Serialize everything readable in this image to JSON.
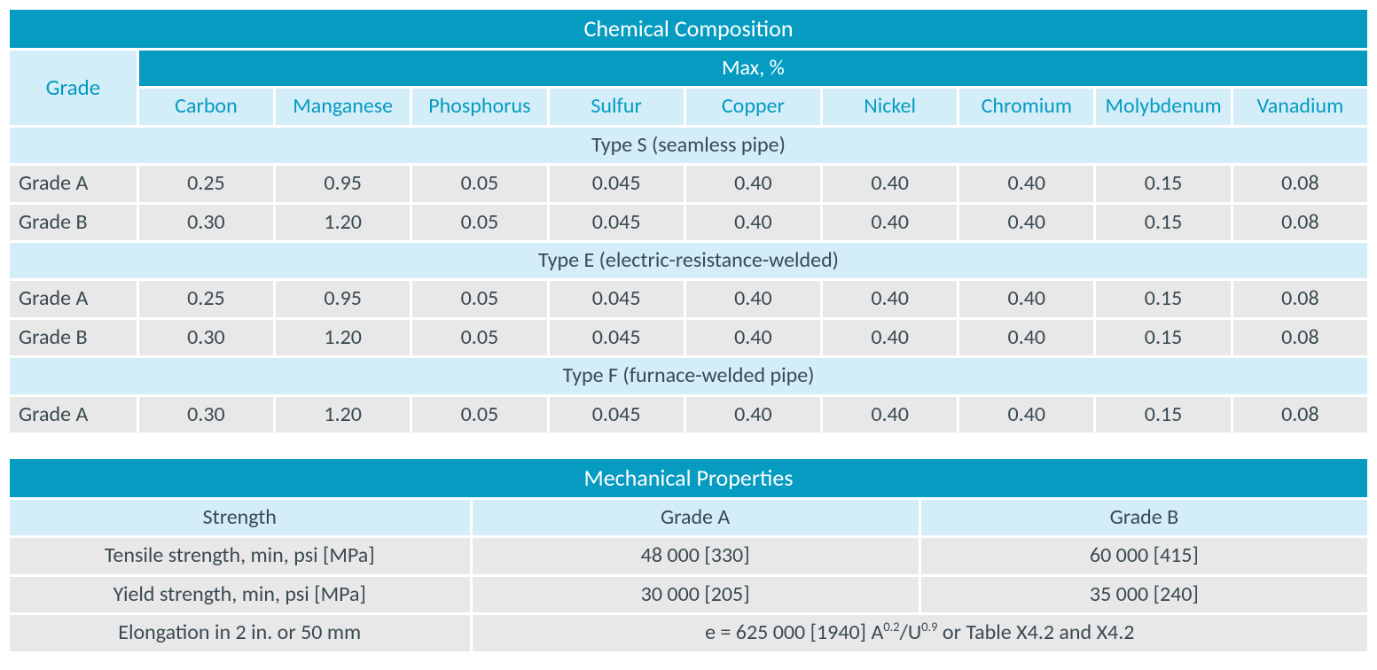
{
  "colors": {
    "header_bg": "#069bc1",
    "header_text": "#ffffff",
    "light_bg": "#d3edf9",
    "row_bg": "#e8e8e8",
    "text": "#3a4a52",
    "page_bg": "#ffffff"
  },
  "chem": {
    "title": "Chemical Composition",
    "grade_header": "Grade",
    "max_header": "Max, %",
    "columns": [
      "Carbon",
      "Manganese",
      "Phosphorus",
      "Sulfur",
      "Copper",
      "Nickel",
      "Chromium",
      "Molybdenum",
      "Vanadium"
    ],
    "sections": [
      {
        "label": "Type S (seamless pipe)",
        "rows": [
          {
            "grade": "Grade A",
            "values": [
              "0.25",
              "0.95",
              "0.05",
              "0.045",
              "0.40",
              "0.40",
              "0.40",
              "0.15",
              "0.08"
            ]
          },
          {
            "grade": "Grade B",
            "values": [
              "0.30",
              "1.20",
              "0.05",
              "0.045",
              "0.40",
              "0.40",
              "0.40",
              "0.15",
              "0.08"
            ]
          }
        ]
      },
      {
        "label": "Type E (electric-resistance-welded)",
        "rows": [
          {
            "grade": "Grade A",
            "values": [
              "0.25",
              "0.95",
              "0.05",
              "0.045",
              "0.40",
              "0.40",
              "0.40",
              "0.15",
              "0.08"
            ]
          },
          {
            "grade": "Grade B",
            "values": [
              "0.30",
              "1.20",
              "0.05",
              "0.045",
              "0.40",
              "0.40",
              "0.40",
              "0.15",
              "0.08"
            ]
          }
        ]
      },
      {
        "label": "Type F (furnace-welded pipe)",
        "rows": [
          {
            "grade": "Grade A",
            "values": [
              "0.30",
              "1.20",
              "0.05",
              "0.045",
              "0.40",
              "0.40",
              "0.40",
              "0.15",
              "0.08"
            ]
          }
        ]
      }
    ]
  },
  "mech": {
    "title": "Mechanical Properties",
    "headers": [
      "Strength",
      "Grade A",
      "Grade B"
    ],
    "rows": [
      {
        "label": "Tensile strength, min, psi [MPa]",
        "a": "48 000 [330]",
        "b": "60 000 [415]"
      },
      {
        "label": "Yield strength, min, psi [MPa]",
        "a": "30 000 [205]",
        "b": "35 000 [240]"
      }
    ],
    "elongation": {
      "label": "Elongation in 2 in. or 50 mm",
      "formula_prefix": "e = 625 000 [1940] A",
      "exp1": "0.2",
      "mid": "/U",
      "exp2": "0.9",
      "suffix": " or Table X4.2 and X4.2"
    }
  }
}
